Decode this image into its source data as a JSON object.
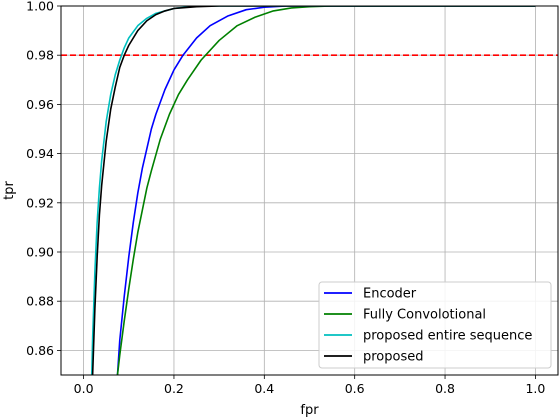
{
  "chart_data": {
    "type": "line",
    "title": "",
    "xlabel": "fpr",
    "ylabel": "tpr",
    "xlim": [
      -0.05,
      1.05
    ],
    "ylim": [
      0.85,
      1.0
    ],
    "xticks": [
      0.0,
      0.2,
      0.4,
      0.6,
      0.8,
      1.0
    ],
    "xtick_labels": [
      "0.0",
      "0.2",
      "0.4",
      "0.6",
      "0.8",
      "1.0"
    ],
    "yticks": [
      0.86,
      0.88,
      0.9,
      0.92,
      0.94,
      0.96,
      0.98,
      1.0
    ],
    "ytick_labels": [
      "0.86",
      "0.88",
      "0.90",
      "0.92",
      "0.94",
      "0.96",
      "0.98",
      "1.00"
    ],
    "grid": true,
    "legend_position": "lower-right",
    "reference_line": {
      "y": 0.98,
      "color": "#ff0000",
      "style": "dashed"
    },
    "series": [
      {
        "name": "Encoder",
        "color": "#0000ff",
        "x": [
          0.075,
          0.08,
          0.09,
          0.1,
          0.11,
          0.12,
          0.13,
          0.14,
          0.15,
          0.16,
          0.18,
          0.2,
          0.22,
          0.25,
          0.28,
          0.32,
          0.36,
          0.4,
          0.45,
          0.5,
          0.6,
          1.0
        ],
        "y": [
          0.85,
          0.864,
          0.882,
          0.898,
          0.912,
          0.924,
          0.934,
          0.942,
          0.95,
          0.956,
          0.966,
          0.974,
          0.98,
          0.987,
          0.992,
          0.996,
          0.9985,
          0.9995,
          1.0,
          1.0,
          1.0,
          1.0
        ]
      },
      {
        "name": "Fully Convolotional",
        "color": "#008000",
        "x": [
          0.075,
          0.08,
          0.09,
          0.1,
          0.11,
          0.12,
          0.13,
          0.14,
          0.15,
          0.17,
          0.19,
          0.21,
          0.23,
          0.26,
          0.3,
          0.34,
          0.38,
          0.42,
          0.46,
          0.5,
          0.55,
          0.6,
          1.0
        ],
        "y": [
          0.85,
          0.858,
          0.872,
          0.885,
          0.897,
          0.908,
          0.917,
          0.926,
          0.933,
          0.946,
          0.956,
          0.964,
          0.97,
          0.978,
          0.986,
          0.992,
          0.9955,
          0.998,
          0.9992,
          0.9997,
          1.0,
          1.0,
          1.0
        ]
      },
      {
        "name": "proposed entire sequence",
        "color": "#00bfbf",
        "x": [
          0.018,
          0.02,
          0.025,
          0.03,
          0.035,
          0.04,
          0.05,
          0.06,
          0.07,
          0.08,
          0.09,
          0.1,
          0.12,
          0.14,
          0.16,
          0.18,
          0.2,
          0.25,
          0.3,
          1.0
        ],
        "y": [
          0.85,
          0.865,
          0.892,
          0.912,
          0.926,
          0.937,
          0.953,
          0.964,
          0.972,
          0.978,
          0.983,
          0.987,
          0.992,
          0.995,
          0.997,
          0.998,
          0.999,
          1.0,
          1.0,
          1.0
        ]
      },
      {
        "name": "proposed",
        "color": "#000000",
        "x": [
          0.02,
          0.025,
          0.03,
          0.035,
          0.04,
          0.05,
          0.06,
          0.07,
          0.08,
          0.09,
          0.1,
          0.12,
          0.14,
          0.16,
          0.18,
          0.2,
          0.25,
          0.3,
          0.35,
          1.0
        ],
        "y": [
          0.85,
          0.877,
          0.898,
          0.915,
          0.927,
          0.945,
          0.958,
          0.967,
          0.975,
          0.98,
          0.984,
          0.99,
          0.994,
          0.9965,
          0.998,
          0.999,
          0.9997,
          1.0,
          1.0,
          1.0
        ]
      }
    ]
  }
}
